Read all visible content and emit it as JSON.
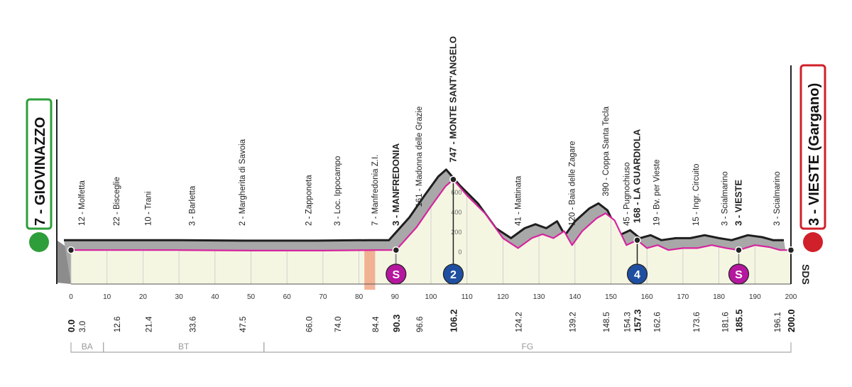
{
  "chart_data": {
    "type": "profile",
    "x": [
      0,
      10,
      30,
      50,
      70,
      85,
      90.3,
      96,
      100,
      104,
      106.2,
      110,
      115,
      120,
      124.2,
      128,
      131,
      134,
      137,
      139.2,
      142,
      146,
      148.5,
      151,
      154.3,
      157.3,
      160,
      163,
      166,
      170,
      174,
      178,
      182,
      185.5,
      190,
      194,
      197,
      200
    ],
    "values": [
      20,
      20,
      20,
      15,
      15,
      20,
      20,
      250,
      460,
      660,
      730,
      570,
      390,
      140,
      40,
      140,
      180,
      140,
      210,
      70,
      210,
      340,
      390,
      320,
      70,
      120,
      40,
      70,
      20,
      40,
      40,
      70,
      40,
      20,
      70,
      50,
      20,
      20
    ],
    "color": "#d6249f",
    "xlim": [
      0,
      200
    ],
    "ylim": [
      0,
      800
    ],
    "xticks": [
      0,
      10,
      20,
      30,
      40,
      50,
      60,
      70,
      80,
      90,
      100,
      110,
      120,
      130,
      140,
      150,
      160,
      170,
      180,
      190,
      200
    ],
    "yticks": [
      0,
      200,
      400,
      600
    ],
    "start": {
      "name": "7 - GIOVINAZZO",
      "km": {
        "value": 0,
        "label": "0.0"
      },
      "color": "#2e9e3a"
    },
    "finish": {
      "name": "3 - VIESTE (Gargano)",
      "km": {
        "value": 200,
        "label": "200.0"
      },
      "color": "#d0202a"
    },
    "waypoints": [
      {
        "name": "12 - Molfetta",
        "km": {
          "value": 3,
          "label": "3.0"
        },
        "bold": false
      },
      {
        "name": "22 - Bisceglie",
        "km": {
          "value": 12.6,
          "label": "12.6"
        },
        "bold": false
      },
      {
        "name": "10 - Trani",
        "km": {
          "value": 21.4,
          "label": "21.4"
        },
        "bold": false
      },
      {
        "name": "3 - Barletta",
        "km": {
          "value": 33.6,
          "label": "33.6"
        },
        "bold": false
      },
      {
        "name": "2 - Margherita di Savoia",
        "km": {
          "value": 47.5,
          "label": "47.5"
        },
        "bold": false
      },
      {
        "name": "2 - Zapponeta",
        "km": {
          "value": 66,
          "label": "66.0"
        },
        "bold": false
      },
      {
        "name": "3 - Loc. Ippocampo",
        "km": {
          "value": 74,
          "label": "74.0"
        },
        "bold": false
      },
      {
        "name": "7 - Manfredonia Z.I.",
        "km": {
          "value": 84.4,
          "label": "84.4"
        },
        "bold": false
      },
      {
        "name": "3 - MANFREDONIA",
        "km": {
          "value": 90.3,
          "label": "90.3"
        },
        "bold": true
      },
      {
        "name": "161 - Madonna delle Grazie",
        "km": {
          "value": 96.6,
          "label": "96.6"
        },
        "bold": false
      },
      {
        "name": "747 - MONTE SANT'ANGELO",
        "km": {
          "value": 106.2,
          "label": "106.2"
        },
        "bold": true
      },
      {
        "name": "41 - Mattinata",
        "km": {
          "value": 124.2,
          "label": "124.2"
        },
        "bold": false
      },
      {
        "name": "120 - Baia delle Zagare",
        "km": {
          "value": 139.2,
          "label": "139.2"
        },
        "bold": false
      },
      {
        "name": "390 - Coppa Santa Tecla",
        "km": {
          "value": 148.5,
          "label": "148.5"
        },
        "bold": false
      },
      {
        "name": "45 - Pugnochiuso",
        "km": {
          "value": 154.3,
          "label": "154.3"
        },
        "bold": false
      },
      {
        "name": "168 - LA GUARDIOLA",
        "km": {
          "value": 157.3,
          "label": "157.3"
        },
        "bold": true
      },
      {
        "name": "19 - Bv. per Vieste",
        "km": {
          "value": 162.6,
          "label": "162.6"
        },
        "bold": false
      },
      {
        "name": "15 - Ingr. Circuito",
        "km": {
          "value": 173.6,
          "label": "173.6"
        },
        "bold": false
      },
      {
        "name": "3 - Scialmarino",
        "km": {
          "value": 181.6,
          "label": "181.6"
        },
        "bold": false
      },
      {
        "name": "3 - VIESTE",
        "km": {
          "value": 185.5,
          "label": "185.5"
        },
        "bold": true
      },
      {
        "name": "3 - Scialmarino",
        "km": {
          "value": 196.1,
          "label": "196.1"
        },
        "bold": false
      }
    ],
    "markers": [
      {
        "label": "S",
        "km": 90.3,
        "color": "#b5179e"
      },
      {
        "label": "2",
        "km": 106.2,
        "color": "#1f4fa0"
      },
      {
        "label": "4",
        "km": 157.3,
        "color": "#1f4fa0"
      },
      {
        "label": "S",
        "km": 185.5,
        "color": "#b5179e"
      }
    ],
    "feed_zone": {
      "from": 81.5,
      "to": 84.5,
      "color": "#f0a080"
    },
    "zones": [
      {
        "name": "BA",
        "from": 0,
        "to": 9
      },
      {
        "name": "BT",
        "from": 9,
        "to": 53.6
      },
      {
        "name": "FG",
        "from": 53.6,
        "to": 200
      }
    ],
    "brand": "SDS"
  }
}
